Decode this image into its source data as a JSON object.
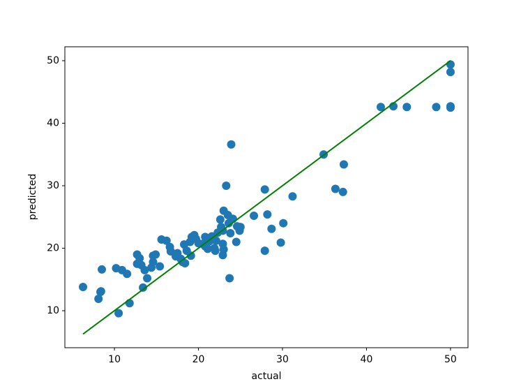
{
  "chart_data": {
    "type": "scatter",
    "x_label": "actual",
    "y_label": "predicted",
    "xlim": [
      4.1,
      52.08
    ],
    "ylim": [
      4.08,
      52.23
    ],
    "xticks": [
      10,
      20,
      30,
      40,
      50
    ],
    "yticks": [
      10,
      20,
      30,
      40,
      50
    ],
    "series": [
      {
        "color": "#1f77b4",
        "x": [
          6.26,
          8.5,
          8.34,
          8.1,
          8.4,
          10.5,
          10.2,
          10.9,
          11.5,
          11.8,
          12.7,
          13.0,
          12.7,
          13.2,
          13.6,
          13.4,
          13.9,
          14.4,
          14.6,
          14.6,
          14.9,
          15.4,
          15.6,
          16.2,
          16.6,
          16.7,
          17.3,
          17.5,
          17.9,
          18.1,
          18.4,
          18.3,
          18.6,
          19.0,
          19.1,
          19.2,
          19.5,
          19.7,
          20.0,
          20.5,
          20.8,
          20.8,
          21.1,
          21.3,
          21.6,
          21.9,
          22.0,
          22.1,
          22.3,
          22.6,
          22.7,
          22.9,
          22.9,
          23.0,
          22.9,
          23.0,
          23.3,
          23.5,
          23.6,
          23.8,
          23.9,
          23.7,
          24.1,
          24.5,
          24.6,
          24.9,
          25.0,
          26.6,
          27.9,
          28.2,
          27.9,
          28.7,
          29.8,
          30.1,
          31.2,
          34.9,
          36.3,
          37.2,
          37.3,
          41.7,
          43.2,
          44.8,
          48.3,
          50,
          50,
          50,
          50
        ],
        "values": [
          13.8,
          16.6,
          13.0,
          11.9,
          13.1,
          9.6,
          16.8,
          16.5,
          15.9,
          11.2,
          19.0,
          18.4,
          17.5,
          17.3,
          16.5,
          13.7,
          15.2,
          16.9,
          17.8,
          18.8,
          19.0,
          17.1,
          21.4,
          21.2,
          20.2,
          19.5,
          18.7,
          19.2,
          18.3,
          17.8,
          17.6,
          20.6,
          19.6,
          21.0,
          18.8,
          21.8,
          22.1,
          21.5,
          20.8,
          20.7,
          21.8,
          20.3,
          19.9,
          21.1,
          21.9,
          20.0,
          19.6,
          21.2,
          22.5,
          24.6,
          23.4,
          22.8,
          20.7,
          19.8,
          18.9,
          26.0,
          30.0,
          25.3,
          24.0,
          22.4,
          36.6,
          15.2,
          24.7,
          21.0,
          23.5,
          22.8,
          23.4,
          25.2,
          29.4,
          25.4,
          19.6,
          23.1,
          20.9,
          24.0,
          28.3,
          35.0,
          29.5,
          29.0,
          33.4,
          42.6,
          42.7,
          42.6,
          42.6,
          42.7,
          42.5,
          49.4,
          48.2
        ]
      }
    ],
    "reference_line": {
      "color": "#008000",
      "x": [
        6.26,
        50
      ],
      "values": [
        6.26,
        50
      ]
    }
  }
}
